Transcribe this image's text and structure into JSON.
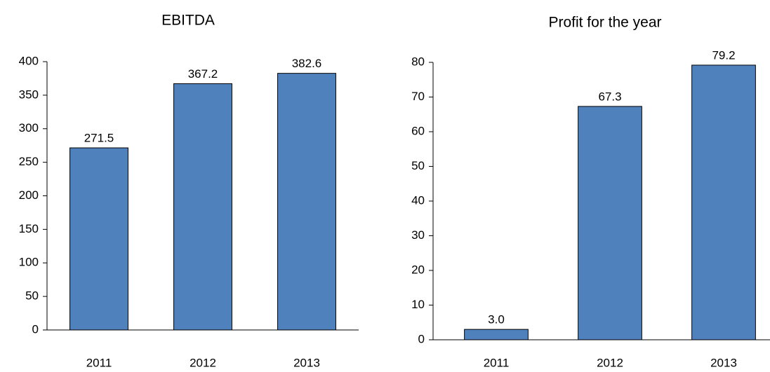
{
  "chart_data": [
    {
      "type": "bar",
      "title": "EBITDA",
      "categories": [
        "2011",
        "2012",
        "2013"
      ],
      "values": [
        271.5,
        367.2,
        382.6
      ],
      "color": "#4f81bd",
      "ylim": [
        0,
        400
      ],
      "yticks": [
        0,
        50,
        100,
        150,
        200,
        250,
        300,
        350,
        400
      ]
    },
    {
      "type": "bar",
      "title": "Profit for the year",
      "categories": [
        "2011",
        "2012",
        "2013"
      ],
      "values": [
        3.0,
        67.3,
        79.2
      ],
      "value_labels": [
        "3.0",
        "67.3",
        "79.2"
      ],
      "color": "#4f81bd",
      "ylim": [
        0,
        80
      ],
      "yticks": [
        0,
        10,
        20,
        30,
        40,
        50,
        60,
        70,
        80
      ]
    }
  ]
}
